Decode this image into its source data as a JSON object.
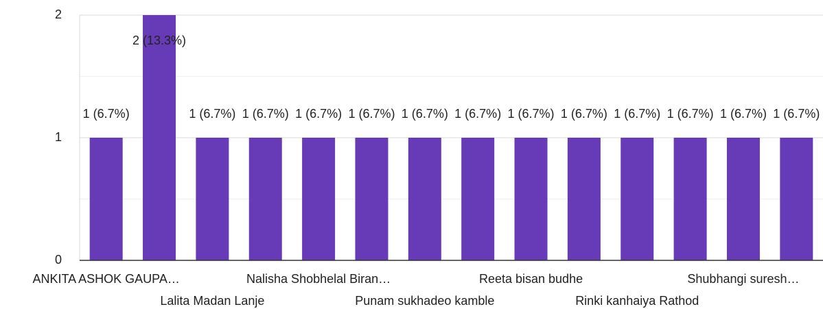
{
  "chart_data": {
    "type": "bar",
    "categories": [
      "ANKITA ASHOK GAUPA…",
      null,
      "Lalita Madan Lanje",
      null,
      "Nalisha Shobhelal Biran…",
      null,
      "Punam sukhadeo kamble",
      null,
      "Reeta bisan budhe",
      null,
      "Rinki kanhaiya Rathod",
      null,
      "Shubhangi suresh…",
      null
    ],
    "values": [
      1,
      2,
      1,
      1,
      1,
      1,
      1,
      1,
      1,
      1,
      1,
      1,
      1,
      1
    ],
    "value_labels": [
      "1 (6.7%)",
      "2 (13.3%)",
      "1 (6.7%)",
      "1 (6.7%)",
      "1 (6.7%)",
      "1 (6.7%)",
      "1 (6.7%)",
      "1 (6.7%)",
      "1 (6.7%)",
      "1 (6.7%)",
      "1 (6.7%)",
      "1 (6.7%)",
      "1 (6.7%)",
      "1 (6.7%)"
    ],
    "color": "#673ab7",
    "ylim": [
      0,
      2
    ],
    "yticks": [
      0,
      1,
      2
    ],
    "minor_yticks": [
      0.5,
      1.5
    ],
    "grid": true
  }
}
